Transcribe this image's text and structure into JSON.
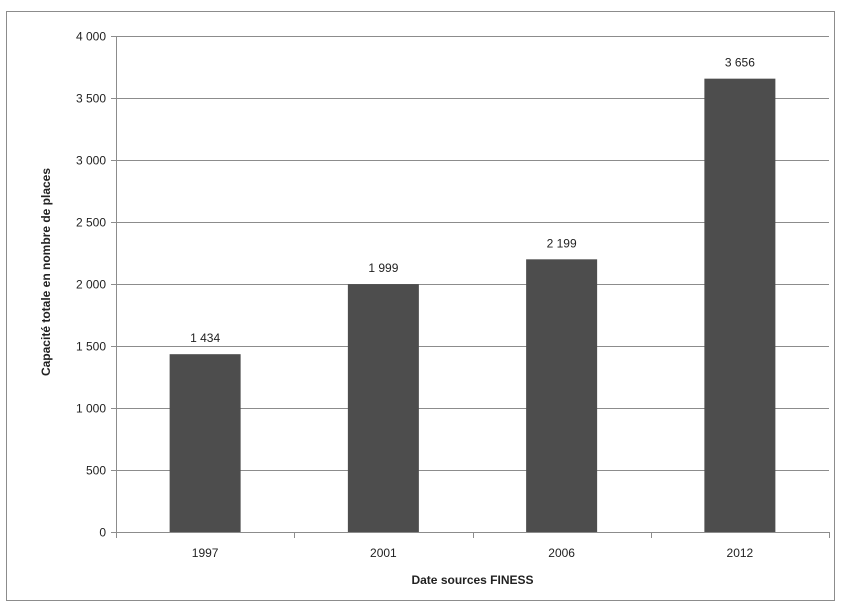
{
  "chart_data": {
    "type": "bar",
    "title": "",
    "xlabel": "Date sources FINESS",
    "ylabel": "Capacité totale en nombre de places",
    "categories": [
      "1997",
      "2001",
      "2006",
      "2012"
    ],
    "values": [
      1434,
      1999,
      2199,
      3656
    ],
    "data_labels": [
      "1 434",
      "1 999",
      "2 199",
      "3 656"
    ],
    "ylim": [
      0,
      4000
    ],
    "yticks": [
      0,
      500,
      1000,
      1500,
      2000,
      2500,
      3000,
      3500,
      4000
    ],
    "ytick_labels": [
      "0",
      "500",
      "1 000",
      "1 500",
      "2 000",
      "2 500",
      "3 000",
      "3 500",
      "4 000"
    ],
    "grid": true,
    "legend": "none",
    "bar_color": "#4d4d4d",
    "grid_color": "#8c8c8c"
  }
}
